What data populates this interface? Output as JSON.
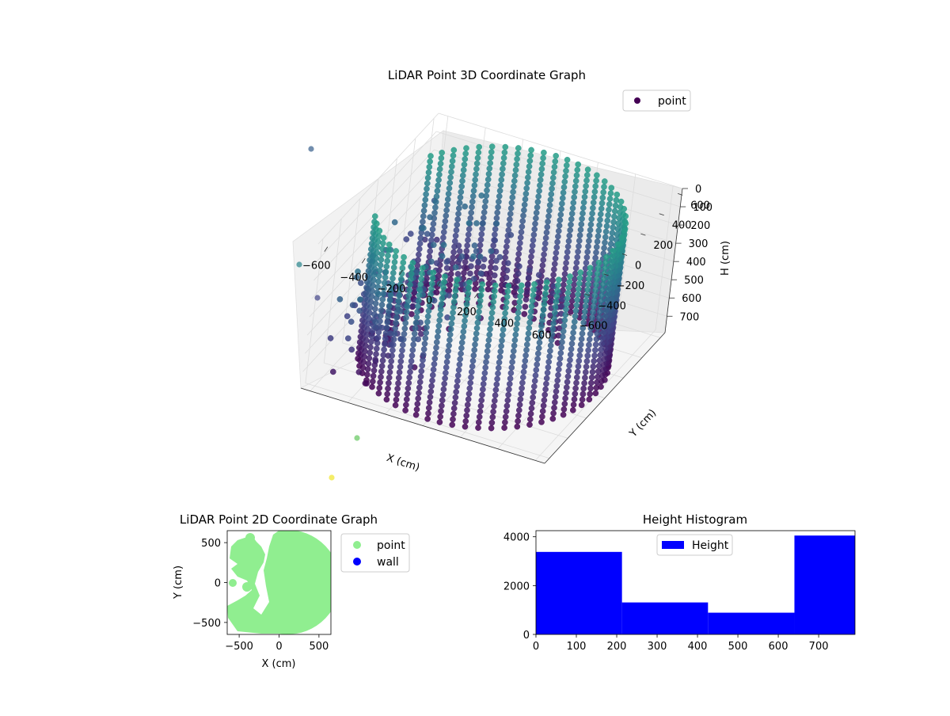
{
  "chart_data": [
    {
      "type": "scatter",
      "title": "LiDAR Point 3D Coordinate Graph",
      "xlabel": "X (cm)",
      "ylabel": "Y (cm)",
      "zlabel": "H (cm)",
      "x_ticks": [
        "−600",
        "−400",
        "−200",
        "0",
        "200",
        "400",
        "600"
      ],
      "y_ticks": [
        "−600",
        "−400",
        "−200",
        "0",
        "200",
        "400",
        "600"
      ],
      "z_ticks": [
        "0",
        "100",
        "200",
        "300",
        "400",
        "500",
        "600",
        "700"
      ],
      "xlim": [
        -650,
        650
      ],
      "ylim": [
        -650,
        650
      ],
      "zlim": [
        0,
        790
      ],
      "z_axis_inverted": true,
      "colormap": "viridis",
      "grid": true,
      "legend": {
        "position": "upper-right",
        "entries": [
          {
            "label": "point",
            "color": "#440154"
          }
        ]
      },
      "series": [
        {
          "name": "point",
          "description_of_shape": "ring wall of radius ~600cm, open toward -X, with an inner arc; heights 0-790",
          "sample_points": [
            {
              "x": 600,
              "y": 0,
              "h": 0
            },
            {
              "x": 600,
              "y": 0,
              "h": 780
            },
            {
              "x": 0,
              "y": 600,
              "h": 700
            },
            {
              "x": 0,
              "y": -600,
              "h": 200
            },
            {
              "x": -400,
              "y": 400,
              "h": 750
            },
            {
              "x": -400,
              "y": -400,
              "h": 300
            },
            {
              "x": -600,
              "y": 0,
              "h": 500
            }
          ]
        }
      ]
    },
    {
      "type": "scatter",
      "title": "LiDAR Point 2D Coordinate Graph",
      "xlabel": "X (cm)",
      "ylabel": "Y (cm)",
      "x_ticks": [
        "−500",
        "0",
        "500"
      ],
      "y_ticks": [
        "500",
        "0",
        "−500"
      ],
      "xlim": [
        -650,
        650
      ],
      "ylim": [
        -650,
        650
      ],
      "legend": {
        "position": "outside-right",
        "entries": [
          {
            "label": "point",
            "color": "#90ee90"
          },
          {
            "label": "wall",
            "color": "#0000ff"
          }
        ]
      }
    },
    {
      "type": "bar",
      "title": "Height Histogram",
      "x_ticks": [
        "0",
        "100",
        "200",
        "300",
        "400",
        "500",
        "600",
        "700"
      ],
      "y_ticks": [
        "0",
        "2000",
        "4000"
      ],
      "xlim": [
        0,
        790
      ],
      "ylim": [
        0,
        4250
      ],
      "legend": {
        "position": "upper-center",
        "entries": [
          {
            "label": "Height",
            "color": "#0000ff"
          }
        ]
      },
      "bins": [
        {
          "start": 0,
          "end": 213,
          "count": 3380
        },
        {
          "start": 213,
          "end": 426,
          "count": 1310
        },
        {
          "start": 426,
          "end": 640,
          "count": 890
        },
        {
          "start": 640,
          "end": 790,
          "count": 4050
        }
      ]
    }
  ]
}
